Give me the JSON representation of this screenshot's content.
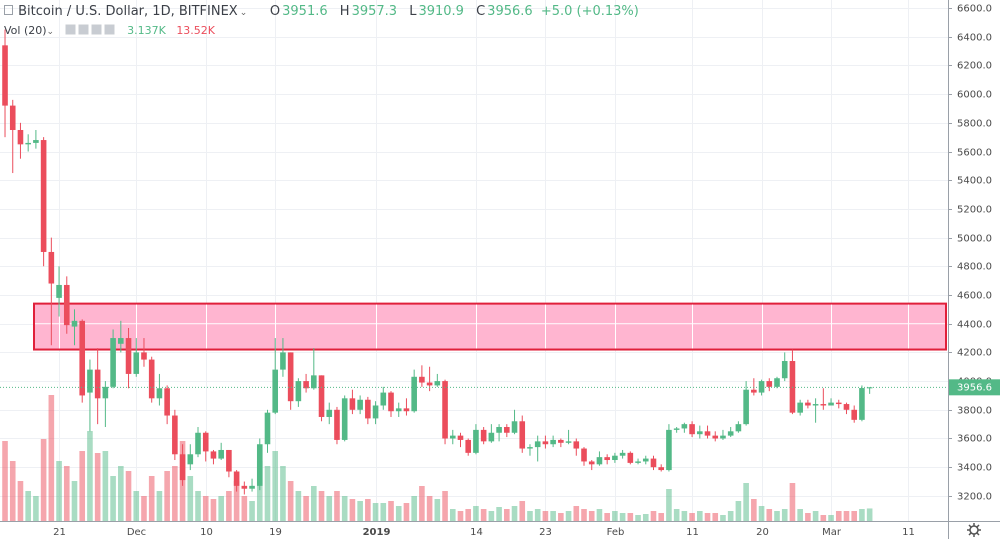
{
  "chart_data": {
    "type": "candlestick",
    "title": "Bitcoin / U.S. Dollar, 1D, BITFINEX",
    "ohlc_labels": [
      "O",
      "H",
      "L",
      "C"
    ],
    "change_label": "+5.0 (+0.13%)",
    "up_color": "#53b987",
    "down_color": "#eb4d5c",
    "grid": true,
    "xlim": [
      -0.65,
      122.15
    ],
    "xticks": [
      {
        "value": 7,
        "label": "21"
      },
      {
        "value": 17,
        "label": "Dec"
      },
      {
        "value": 26,
        "label": "10"
      },
      {
        "value": 35,
        "label": "19"
      },
      {
        "value": 48,
        "label": "2019"
      },
      {
        "value": 61,
        "label": "14"
      },
      {
        "value": 70,
        "label": "23"
      },
      {
        "value": 79,
        "label": "Feb"
      },
      {
        "value": 89,
        "label": "11"
      },
      {
        "value": 98,
        "label": "20"
      },
      {
        "value": 107,
        "label": "Mar"
      },
      {
        "value": 117,
        "label": "11"
      }
    ],
    "ylim": [
      3025,
      6656
    ],
    "yticks": [
      {
        "value": 3200,
        "label": "3200.0"
      },
      {
        "value": 3400,
        "label": "3400.0"
      },
      {
        "value": 3600,
        "label": "3600.0"
      },
      {
        "value": 3800,
        "label": "3800.0"
      },
      {
        "value": 4000,
        "label": "4000.0"
      },
      {
        "value": 4200,
        "label": "4200.0"
      },
      {
        "value": 4400,
        "label": "4400.0"
      },
      {
        "value": 4600,
        "label": "4600.0"
      },
      {
        "value": 4800,
        "label": "4800.0"
      },
      {
        "value": 5000,
        "label": "5000.0"
      },
      {
        "value": 5200,
        "label": "5200.0"
      },
      {
        "value": 5400,
        "label": "5400.0"
      },
      {
        "value": 5600,
        "label": "5600.0"
      },
      {
        "value": 5800,
        "label": "5800.0"
      },
      {
        "value": 6000,
        "label": "6000.0"
      },
      {
        "value": 6200,
        "label": "6200.0"
      },
      {
        "value": 6400,
        "label": "6400.0"
      },
      {
        "value": 6600,
        "label": "6600.0"
      }
    ],
    "zone": {
      "low": 4220,
      "high": 4540,
      "color": "#ffa8c8",
      "border": "#e0203a"
    },
    "open": [
      6340,
      5920,
      5750,
      5650,
      5660,
      5680,
      4900,
      4580,
      4670,
      4380,
      4420,
      3920,
      4080,
      3880,
      3960,
      4260,
      4300,
      4050,
      4200,
      4150,
      3880,
      3950,
      3760,
      3490,
      3420,
      3490,
      3640,
      3510,
      3460,
      3520,
      3370,
      3270,
      3250,
      3270,
      3560,
      3780,
      4080,
      4200,
      3860,
      4000,
      3950,
      4040,
      3750,
      3800,
      3590,
      3880,
      3800,
      3870,
      3740,
      3830,
      3920,
      3790,
      3810,
      3790,
      4030,
      3990,
      3970,
      4000,
      3600,
      3620,
      3590,
      3500,
      3660,
      3580,
      3640,
      3680,
      3640,
      3720,
      3530,
      3540,
      3580,
      3560,
      3590,
      3570,
      3580,
      3530,
      3440,
      3420,
      3470,
      3450,
      3480,
      3500,
      3430,
      3440,
      3460,
      3400,
      3380,
      3660,
      3670,
      3700,
      3630,
      3650,
      3620,
      3600,
      3620,
      3650,
      3700,
      3940,
      3920,
      4000,
      3960,
      4020,
      4140,
      3780,
      3850,
      3830,
      3840,
      3830,
      3850,
      3840,
      3800,
      3730,
      3951.6
    ],
    "high": [
      6450,
      5960,
      5800,
      5720,
      5750,
      5700,
      5000,
      4800,
      4730,
      4500,
      4430,
      4150,
      4230,
      4000,
      4360,
      4420,
      4370,
      4300,
      4300,
      4170,
      4050,
      3970,
      3800,
      3560,
      3560,
      3680,
      3650,
      3520,
      3570,
      3520,
      3380,
      3300,
      3320,
      3600,
      3800,
      4300,
      4300,
      4200,
      4020,
      4050,
      4230,
      4040,
      3850,
      3820,
      3900,
      3940,
      3900,
      3890,
      3860,
      3960,
      3930,
      3850,
      3880,
      4080,
      4110,
      4100,
      4050,
      4010,
      3660,
      3640,
      3600,
      3700,
      3680,
      3700,
      3700,
      3700,
      3800,
      3760,
      3560,
      3620,
      3620,
      3620,
      3600,
      3660,
      3600,
      3540,
      3450,
      3510,
      3490,
      3500,
      3520,
      3510,
      3460,
      3480,
      3480,
      3420,
      3700,
      3680,
      3710,
      3720,
      3690,
      3690,
      3650,
      3660,
      3680,
      3720,
      4000,
      4020,
      4010,
      4020,
      4030,
      4200,
      4220,
      3870,
      3870,
      3880,
      3950,
      3880,
      3870,
      3850,
      3830,
      3970,
      3957.3
    ],
    "low": [
      5700,
      5450,
      5550,
      5600,
      5620,
      4800,
      4250,
      4450,
      4330,
      4250,
      3850,
      3650,
      3700,
      3680,
      3950,
      4200,
      3950,
      4030,
      4100,
      3850,
      3830,
      3700,
      3450,
      3270,
      3380,
      3470,
      3440,
      3420,
      3450,
      3330,
      3230,
      3210,
      3230,
      3240,
      3500,
      3770,
      4030,
      3800,
      3820,
      3920,
      3940,
      3720,
      3700,
      3560,
      3580,
      3770,
      3770,
      3700,
      3700,
      3800,
      3750,
      3750,
      3760,
      3780,
      3960,
      3930,
      3960,
      3560,
      3560,
      3540,
      3480,
      3490,
      3560,
      3570,
      3580,
      3610,
      3630,
      3500,
      3480,
      3440,
      3530,
      3540,
      3540,
      3560,
      3480,
      3410,
      3380,
      3410,
      3420,
      3430,
      3460,
      3420,
      3420,
      3420,
      3380,
      3370,
      3370,
      3640,
      3640,
      3610,
      3600,
      3600,
      3580,
      3590,
      3610,
      3640,
      3690,
      3900,
      3900,
      3930,
      3950,
      4000,
      3770,
      3760,
      3810,
      3710,
      3800,
      3830,
      3810,
      3770,
      3710,
      3720,
      3910.9
    ],
    "close": [
      5920,
      5750,
      5650,
      5660,
      5680,
      4900,
      4680,
      4670,
      4390,
      4420,
      3900,
      4080,
      3880,
      3960,
      4300,
      4300,
      4050,
      4200,
      4150,
      3880,
      3950,
      3760,
      3490,
      3310,
      3490,
      3640,
      3510,
      3460,
      3520,
      3370,
      3270,
      3250,
      3270,
      3560,
      3780,
      4080,
      4200,
      3860,
      4000,
      3950,
      4040,
      3750,
      3800,
      3590,
      3880,
      3800,
      3870,
      3740,
      3830,
      3920,
      3790,
      3810,
      3790,
      4030,
      3990,
      3970,
      4000,
      3600,
      3620,
      3590,
      3500,
      3660,
      3580,
      3640,
      3680,
      3640,
      3720,
      3530,
      3540,
      3580,
      3560,
      3590,
      3570,
      3580,
      3530,
      3440,
      3420,
      3470,
      3450,
      3480,
      3500,
      3430,
      3440,
      3460,
      3400,
      3380,
      3660,
      3670,
      3700,
      3630,
      3650,
      3620,
      3600,
      3620,
      3650,
      3700,
      3940,
      3920,
      4000,
      3960,
      4020,
      4140,
      3780,
      3850,
      3830,
      3840,
      3830,
      3850,
      3840,
      3800,
      3730,
      3951.6,
      3956.6
    ],
    "volume": {
      "name": "Vol (20)",
      "vlim": [
        0,
        35000
      ],
      "values": [
        20000,
        15000,
        10000,
        7500,
        6250,
        20500,
        31500,
        15000,
        13750,
        10000,
        17500,
        22500,
        17000,
        17500,
        11250,
        13750,
        12500,
        7500,
        6250,
        11250,
        7500,
        12500,
        13750,
        20000,
        11250,
        7500,
        6250,
        5500,
        6250,
        7500,
        10000,
        6250,
        5000,
        15000,
        13750,
        17500,
        13750,
        10000,
        7500,
        6250,
        8750,
        7500,
        6250,
        7500,
        6250,
        5500,
        5000,
        5500,
        4500,
        4500,
        5000,
        3750,
        4500,
        6250,
        8750,
        6250,
        5500,
        7500,
        3000,
        2500,
        3000,
        3750,
        3000,
        2500,
        3500,
        3000,
        3750,
        5000,
        2500,
        3000,
        2500,
        2500,
        2000,
        2500,
        3750,
        3000,
        2500,
        3000,
        2000,
        2500,
        2000,
        2000,
        1500,
        1750,
        2500,
        2000,
        8000,
        3000,
        2500,
        2000,
        2500,
        2000,
        2000,
        1500,
        2500,
        5000,
        9500,
        5500,
        3750,
        3000,
        2500,
        3000,
        9500,
        3000,
        2000,
        2500,
        1500,
        1500,
        2500,
        2500,
        2500,
        3000,
        3137
      ],
      "last_label": "3.137K",
      "ma": {
        "value": 13520,
        "label": "13.52K"
      }
    }
  }
}
